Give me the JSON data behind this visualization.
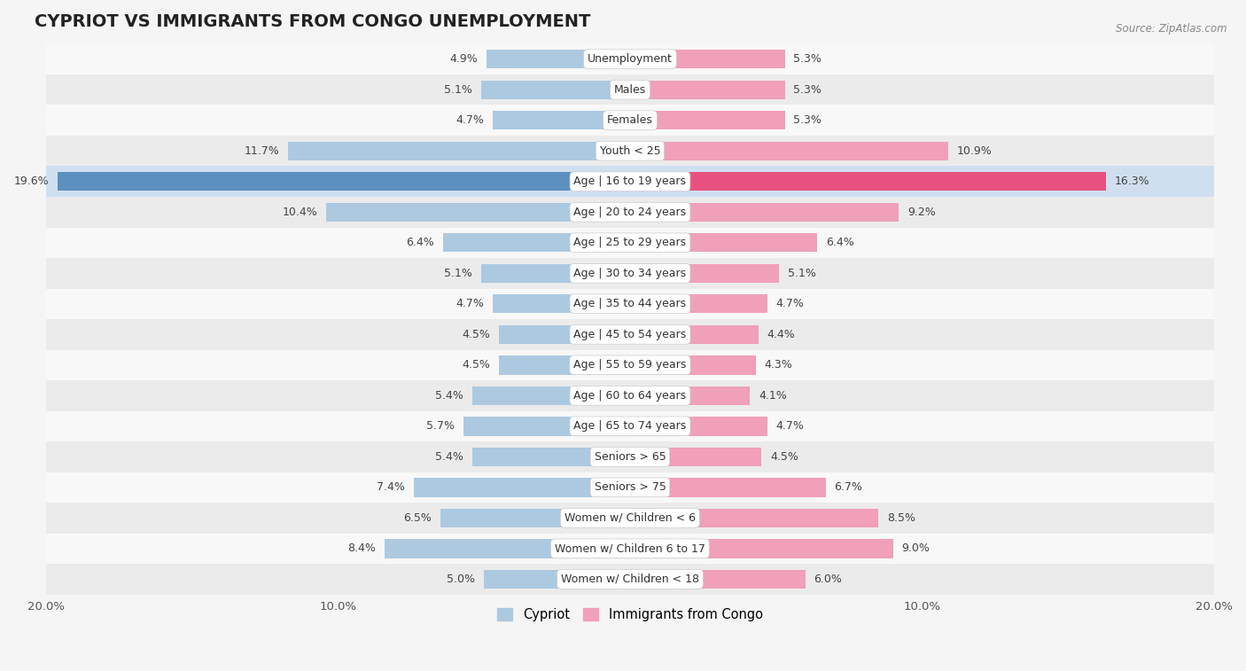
{
  "title": "CYPRIOT VS IMMIGRANTS FROM CONGO UNEMPLOYMENT",
  "source": "Source: ZipAtlas.com",
  "categories": [
    "Unemployment",
    "Males",
    "Females",
    "Youth < 25",
    "Age | 16 to 19 years",
    "Age | 20 to 24 years",
    "Age | 25 to 29 years",
    "Age | 30 to 34 years",
    "Age | 35 to 44 years",
    "Age | 45 to 54 years",
    "Age | 55 to 59 years",
    "Age | 60 to 64 years",
    "Age | 65 to 74 years",
    "Seniors > 65",
    "Seniors > 75",
    "Women w/ Children < 6",
    "Women w/ Children 6 to 17",
    "Women w/ Children < 18"
  ],
  "cypriot": [
    4.9,
    5.1,
    4.7,
    11.7,
    19.6,
    10.4,
    6.4,
    5.1,
    4.7,
    4.5,
    4.5,
    5.4,
    5.7,
    5.4,
    7.4,
    6.5,
    8.4,
    5.0
  ],
  "congo": [
    5.3,
    5.3,
    5.3,
    10.9,
    16.3,
    9.2,
    6.4,
    5.1,
    4.7,
    4.4,
    4.3,
    4.1,
    4.7,
    4.5,
    6.7,
    8.5,
    9.0,
    6.0
  ],
  "cypriot_color": "#adc9e0",
  "congo_color": "#f0a0b8",
  "highlight_cypriot_color": "#5a8fc0",
  "highlight_congo_color": "#e85080",
  "bar_height": 0.62,
  "xlim": 20.0,
  "bg_light": "#f8f8f8",
  "bg_dark": "#ebebeb",
  "legend_cypriot": "Cypriot",
  "legend_congo": "Immigrants from Congo",
  "title_fontsize": 14,
  "label_fontsize": 9,
  "value_fontsize": 9
}
